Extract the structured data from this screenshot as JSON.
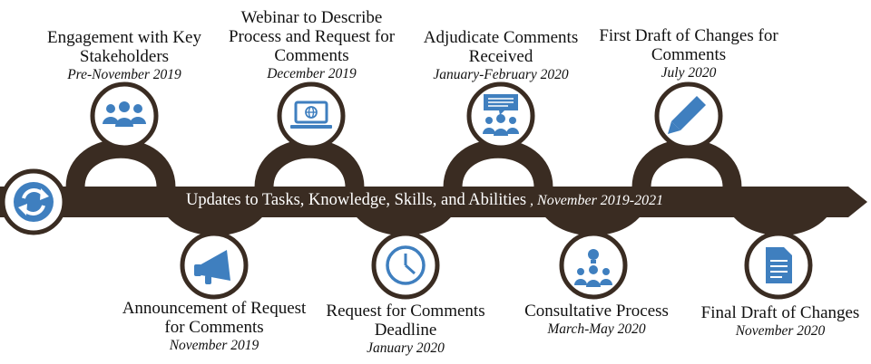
{
  "banner": {
    "text": "Updates to Tasks, Knowledge, Skills, and Abilities",
    "dates": " , November 2019-2021"
  },
  "milestones": [
    {
      "title": "Engagement with Key Stakeholders",
      "date": "Pre-November 2019",
      "icon": "people-group-icon"
    },
    {
      "title": "Announcement of Request for Comments",
      "date": "November 2019",
      "icon": "megaphone-icon"
    },
    {
      "title": "Webinar to Describe Process and Request for Comments",
      "date": "December 2019",
      "icon": "laptop-globe-icon"
    },
    {
      "title": "Request for Comments Deadline",
      "date": "January 2020",
      "icon": "clock-icon"
    },
    {
      "title": "Adjudicate Comments Received",
      "date": "January-February 2020",
      "icon": "speech-bubble-people-icon"
    },
    {
      "title": "Consultative Process",
      "date": "March-May 2020",
      "icon": "lightbulb-people-icon"
    },
    {
      "title": "First Draft of Changes for Comments",
      "date": "July 2020",
      "icon": "pencil-icon"
    },
    {
      "title": "Final Draft of Changes",
      "date": "November 2020",
      "icon": "document-icon"
    }
  ],
  "start_icon": "refresh-arrows-icon",
  "colors": {
    "band": "#3a2c22",
    "icon_blue": "#3f7fbf",
    "circle_border": "#3a2c22",
    "text": "#111111"
  }
}
